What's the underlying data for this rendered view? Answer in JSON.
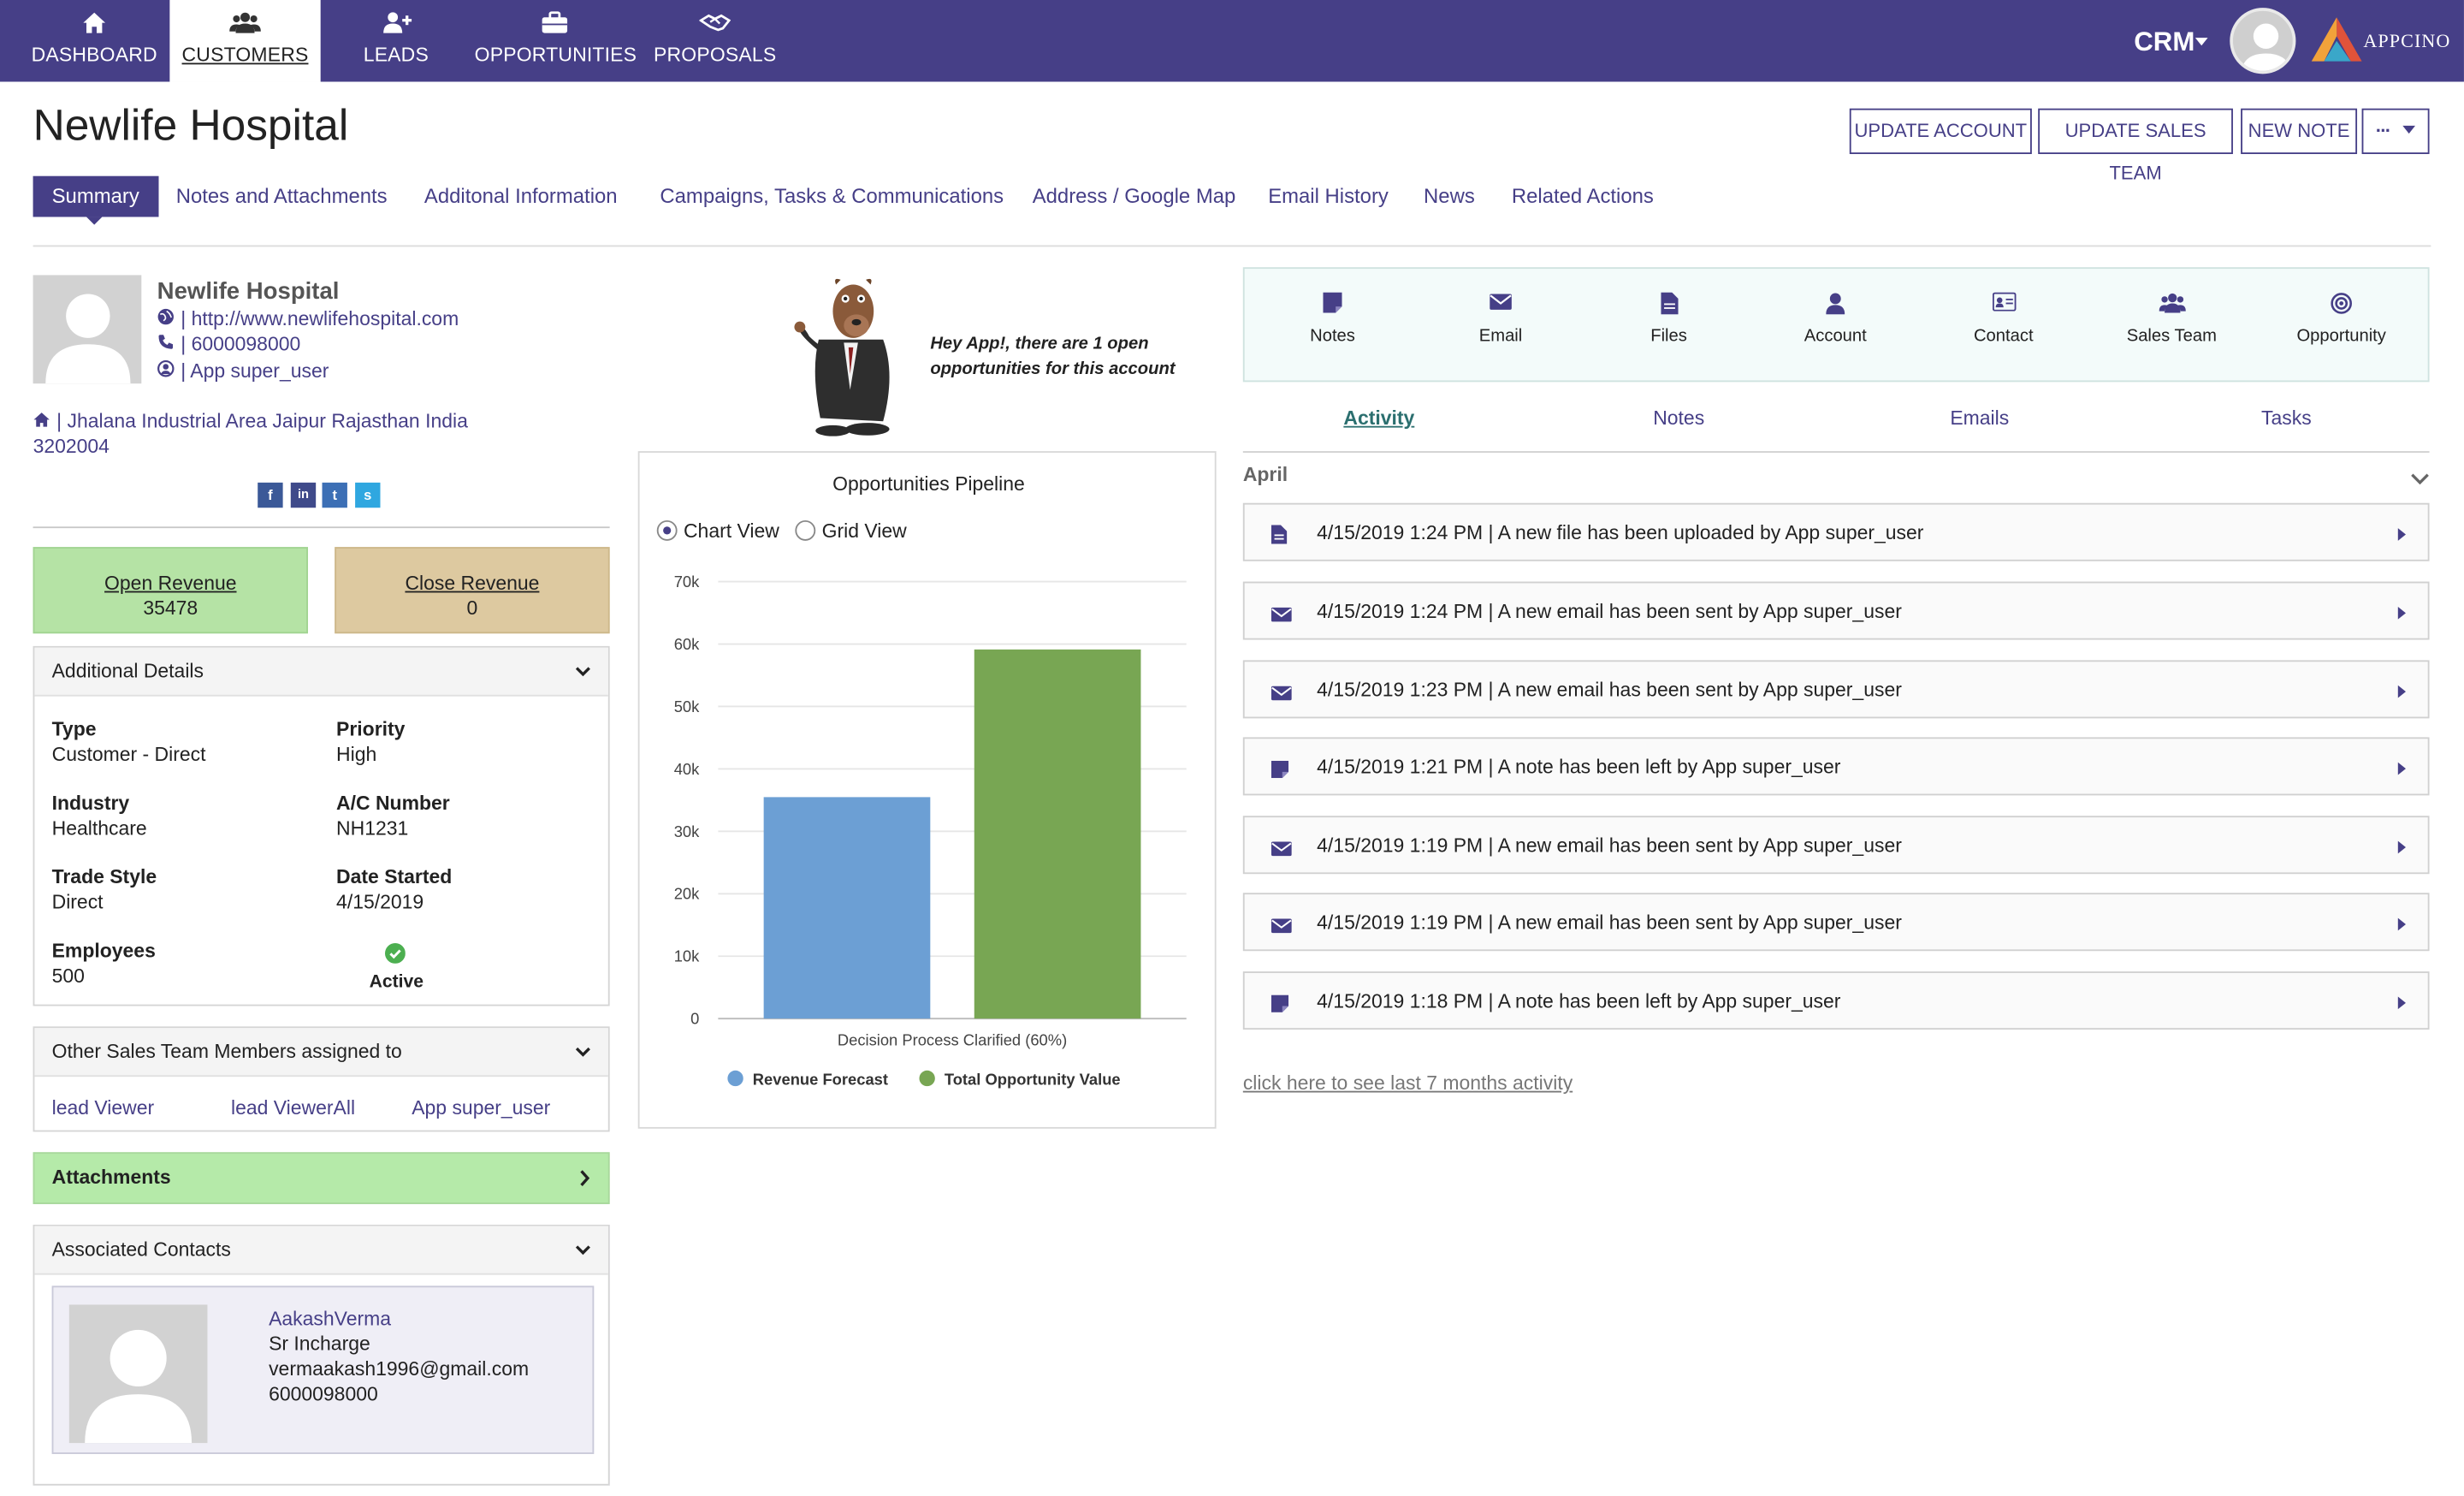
{
  "nav": {
    "items": [
      {
        "label": "DASHBOARD",
        "icon": "home-icon"
      },
      {
        "label": "CUSTOMERS",
        "icon": "users-icon",
        "active": true
      },
      {
        "label": "LEADS",
        "icon": "user-plus-icon"
      },
      {
        "label": "OPPORTUNITIES",
        "icon": "briefcase-icon"
      },
      {
        "label": "PROPOSALS",
        "icon": "handshake-icon"
      }
    ],
    "app_menu": "CRM",
    "brand": "APPCINO"
  },
  "header": {
    "title": "Newlife Hospital",
    "buttons": [
      "UPDATE ACCOUNT",
      "UPDATE SALES TEAM",
      "NEW NOTE"
    ],
    "more_button": "···"
  },
  "tabs": [
    "Summary",
    "Notes and Attachments",
    "Additonal Information",
    "Campaigns, Tasks & Communications",
    "Address / Google Map",
    "Email History",
    "News",
    "Related Actions"
  ],
  "profile": {
    "name": "Newlife Hospital",
    "website": "| http://www.newlifehospital.com",
    "phone": "| 6000098000",
    "owner": "| App super_user",
    "address_line1": "| Jhalana Industrial Area Jaipur Rajasthan India",
    "address_line2": "3202004",
    "social": [
      "f",
      "in",
      "t",
      "s"
    ]
  },
  "revenue": {
    "open_label": "Open Revenue",
    "open_value": "35478",
    "close_label": "Close Revenue",
    "close_value": "0"
  },
  "additional_details": {
    "title": "Additional Details",
    "type_label": "Type",
    "type_value": "Customer - Direct",
    "priority_label": "Priority",
    "priority_value": "High",
    "industry_label": "Industry",
    "industry_value": "Healthcare",
    "ac_label": "A/C Number",
    "ac_value": "NH1231",
    "trade_label": "Trade Style",
    "trade_value": "Direct",
    "date_label": "Date Started",
    "date_value": "4/15/2019",
    "employees_label": "Employees",
    "employees_value": "500",
    "status_value": "Active"
  },
  "sales_team": {
    "title": "Other Sales Team Members assigned to",
    "members": [
      "lead Viewer",
      "lead ViewerAll",
      "App super_user"
    ]
  },
  "attachments": {
    "title": "Attachments"
  },
  "contacts": {
    "title": "Associated Contacts",
    "name": "AakashVerma",
    "role": "Sr Incharge",
    "email": "vermaakash1996@gmail.com",
    "phone": "6000098000"
  },
  "mascot": {
    "message": "Hey App!, there are 1 open opportunities for this account"
  },
  "pipeline": {
    "title": "Opportunities Pipeline",
    "chart_view": "Chart View",
    "grid_view": "Grid View"
  },
  "chart_data": {
    "type": "bar",
    "title": "Opportunities Pipeline",
    "categories": [
      "Decision Process Clarified (60%)"
    ],
    "series": [
      {
        "name": "Revenue Forecast",
        "values": [
          35478
        ],
        "color": "#6c9fd4"
      },
      {
        "name": "Total Opportunity Value",
        "values": [
          59130
        ],
        "color": "#78a653"
      }
    ],
    "y_ticks": [
      "0",
      "10k",
      "20k",
      "30k",
      "40k",
      "50k",
      "60k",
      "70k"
    ],
    "ylim": [
      0,
      70000
    ],
    "grid": true,
    "legend": "bottom"
  },
  "quick_actions": [
    {
      "label": "Notes",
      "icon": "note-icon"
    },
    {
      "label": "Email",
      "icon": "email-icon"
    },
    {
      "label": "Files",
      "icon": "file-icon"
    },
    {
      "label": "Account",
      "icon": "account-icon"
    },
    {
      "label": "Contact",
      "icon": "contact-card-icon"
    },
    {
      "label": "Sales Team",
      "icon": "team-icon"
    },
    {
      "label": "Opportunity",
      "icon": "target-icon"
    }
  ],
  "activity_tabs": [
    "Activity",
    "Notes",
    "Emails",
    "Tasks"
  ],
  "activity": {
    "month": "April",
    "items": [
      {
        "icon": "file-icon",
        "text": "4/15/2019 1:24 PM | A new file has been uploaded by App super_user"
      },
      {
        "icon": "email-icon",
        "text": "4/15/2019 1:24 PM | A new email has been sent by App super_user"
      },
      {
        "icon": "email-icon",
        "text": "4/15/2019 1:23 PM | A new email has been sent by App super_user"
      },
      {
        "icon": "note-icon",
        "text": "4/15/2019 1:21 PM | A note has been left by App super_user"
      },
      {
        "icon": "email-icon",
        "text": "4/15/2019 1:19 PM | A new email has been sent by App super_user"
      },
      {
        "icon": "email-icon",
        "text": "4/15/2019 1:19 PM | A new email has been sent by App super_user"
      },
      {
        "icon": "note-icon",
        "text": "4/15/2019 1:18 PM | A note has been left by App super_user"
      }
    ],
    "see_more": "click here to see last 7 months activity"
  }
}
